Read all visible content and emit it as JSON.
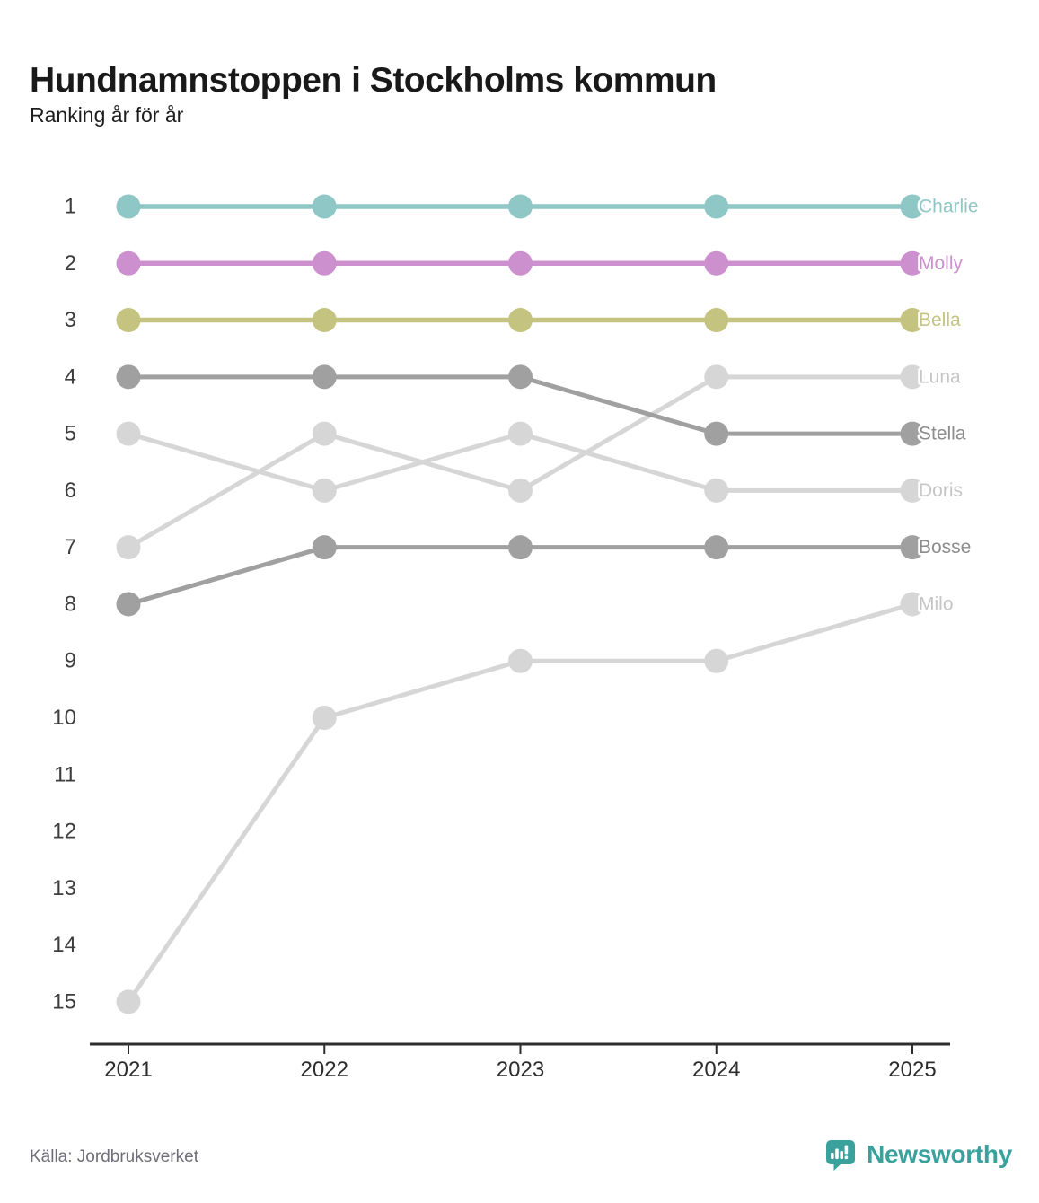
{
  "header": {
    "title": "Hundnamnstoppen i Stockholms kommun",
    "subtitle": "Ranking år för år"
  },
  "chart_data": {
    "type": "line",
    "variant": "bump-ranking",
    "title": "Hundnamnstoppen i Stockholms kommun",
    "subtitle": "Ranking år för år",
    "x": [
      2021,
      2022,
      2023,
      2024,
      2025
    ],
    "y_axis": {
      "kind": "rank",
      "ticks": [
        1,
        2,
        3,
        4,
        5,
        6,
        7,
        8,
        9,
        10,
        11,
        12,
        13,
        14,
        15
      ],
      "inverted": true,
      "range": [
        1,
        15
      ]
    },
    "grid": false,
    "legend_position": "right-end-labels",
    "series": [
      {
        "name": "Charlie",
        "values": [
          1,
          1,
          1,
          1,
          1
        ],
        "color": "#8fc7c6",
        "label_color": "#8fc7c6"
      },
      {
        "name": "Molly",
        "values": [
          2,
          2,
          2,
          2,
          2
        ],
        "color": "#cb90cd",
        "label_color": "#cb90cd"
      },
      {
        "name": "Bella",
        "values": [
          3,
          3,
          3,
          3,
          3
        ],
        "color": "#c4c37f",
        "label_color": "#c4c37f"
      },
      {
        "name": "Luna",
        "values": [
          7,
          5,
          6,
          4,
          4
        ],
        "color": "#d6d6d6",
        "label_color": "#c6c6c6"
      },
      {
        "name": "Stella",
        "values": [
          4,
          4,
          4,
          5,
          5
        ],
        "color": "#a0a0a0",
        "label_color": "#8c8c8c"
      },
      {
        "name": "Doris",
        "values": [
          5,
          6,
          5,
          6,
          6
        ],
        "color": "#d6d6d6",
        "label_color": "#c6c6c6"
      },
      {
        "name": "Bosse",
        "values": [
          8,
          7,
          7,
          7,
          7
        ],
        "color": "#a0a0a0",
        "label_color": "#8c8c8c"
      },
      {
        "name": "Milo",
        "values": [
          15,
          10,
          9,
          9,
          8
        ],
        "color": "#d6d6d6",
        "label_color": "#c6c6c6"
      }
    ]
  },
  "footer": {
    "source": "Källa: Jordbruksverket",
    "brand": "Newsworthy"
  },
  "colors": {
    "brand_teal": "#3aa19c",
    "axis": "#2d2d2d",
    "rank_label": "#3d3d3d",
    "year_label": "#2d2d2d"
  }
}
